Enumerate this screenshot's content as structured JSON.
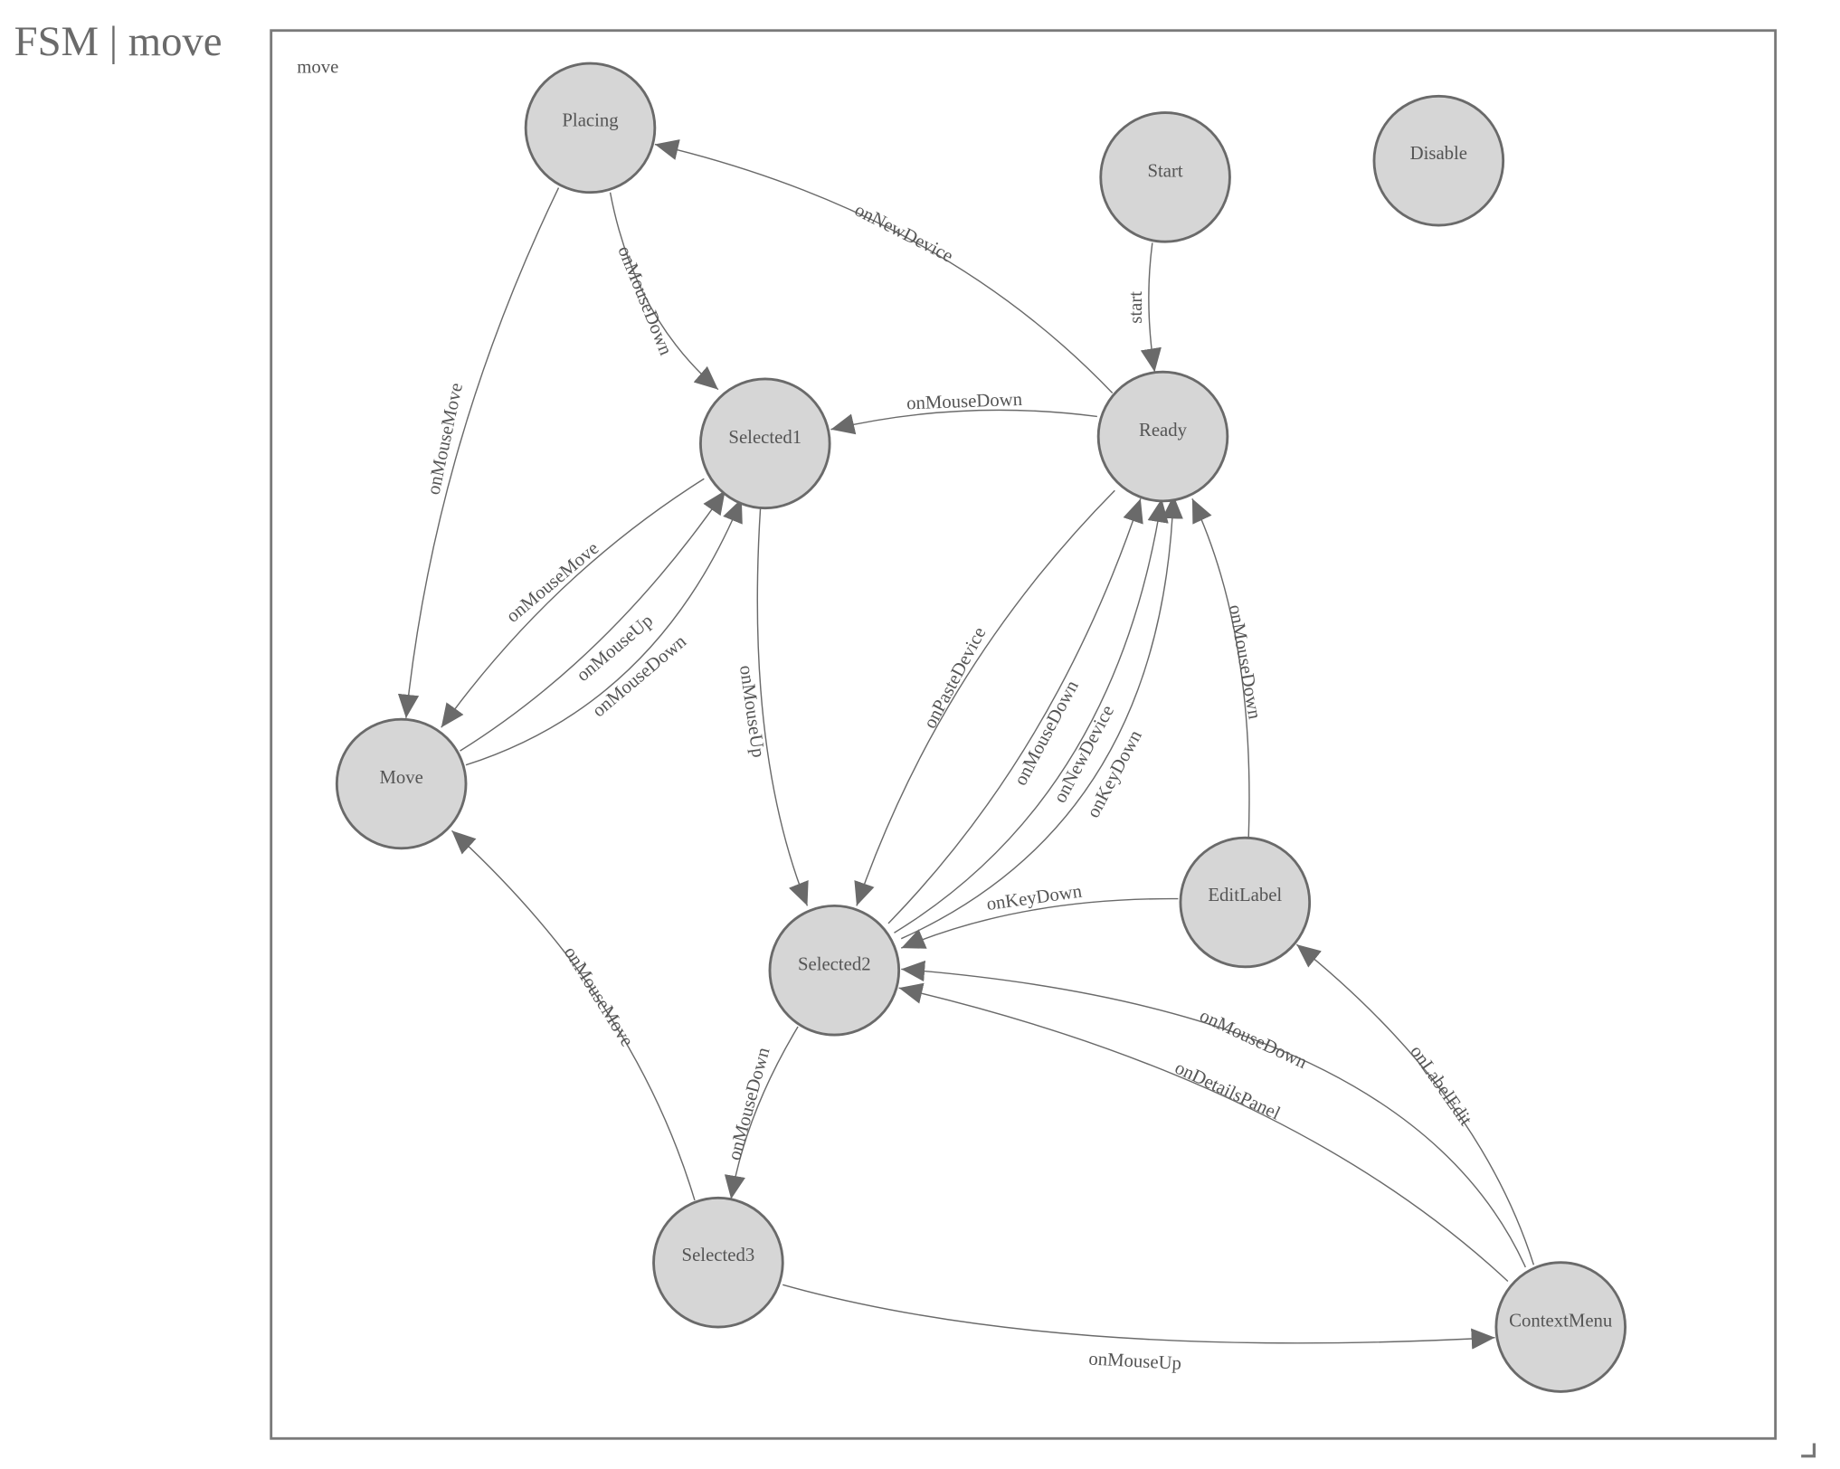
{
  "header": {
    "title": "FSM | move"
  },
  "diagram": {
    "group_label": "move",
    "colors": {
      "node_fill": "#d6d6d6",
      "stroke": "#6a6a6a",
      "text": "#555555"
    },
    "nodes": {
      "placing": "Placing",
      "start": "Start",
      "disable": "Disable",
      "selected1": "Selected1",
      "ready": "Ready",
      "move": "Move",
      "selected2": "Selected2",
      "editlabel": "EditLabel",
      "selected3": "Selected3",
      "contextmenu": "ContextMenu"
    },
    "edges": [
      {
        "from": "Ready",
        "to": "Placing",
        "label": "onNewDevice"
      },
      {
        "from": "Placing",
        "to": "Selected1",
        "label": "onMouseDown"
      },
      {
        "from": "Placing",
        "to": "Move",
        "label": "onMouseMove"
      },
      {
        "from": "Start",
        "to": "Ready",
        "label": "start"
      },
      {
        "from": "Ready",
        "to": "Selected1",
        "label": "onMouseDown"
      },
      {
        "from": "Selected1",
        "to": "Move",
        "label": "onMouseMove"
      },
      {
        "from": "Move",
        "to": "Selected1",
        "label": "onMouseUp"
      },
      {
        "from": "Move",
        "to": "Selected1",
        "label": "onMouseDown"
      },
      {
        "from": "Selected1",
        "to": "Selected2",
        "label": "onMouseUp"
      },
      {
        "from": "Ready",
        "to": "Selected2",
        "label": "onPasteDevice"
      },
      {
        "from": "Selected2",
        "to": "Ready",
        "label": "onMouseDown"
      },
      {
        "from": "Selected2",
        "to": "Ready",
        "label": "onNewDevice"
      },
      {
        "from": "Selected2",
        "to": "Ready",
        "label": "onKeyDown"
      },
      {
        "from": "EditLabel",
        "to": "Ready",
        "label": "onMouseDown"
      },
      {
        "from": "EditLabel",
        "to": "Selected2",
        "label": "onKeyDown"
      },
      {
        "from": "ContextMenu",
        "to": "Selected2",
        "label": "onMouseDown"
      },
      {
        "from": "ContextMenu",
        "to": "Selected2",
        "label": "onDetailsPanel"
      },
      {
        "from": "ContextMenu",
        "to": "EditLabel",
        "label": "onLabelEdit"
      },
      {
        "from": "Selected2",
        "to": "Selected3",
        "label": "onMouseDown"
      },
      {
        "from": "Selected3",
        "to": "Move",
        "label": "onMouseMove"
      },
      {
        "from": "Selected3",
        "to": "ContextMenu",
        "label": "onMouseUp"
      }
    ]
  }
}
